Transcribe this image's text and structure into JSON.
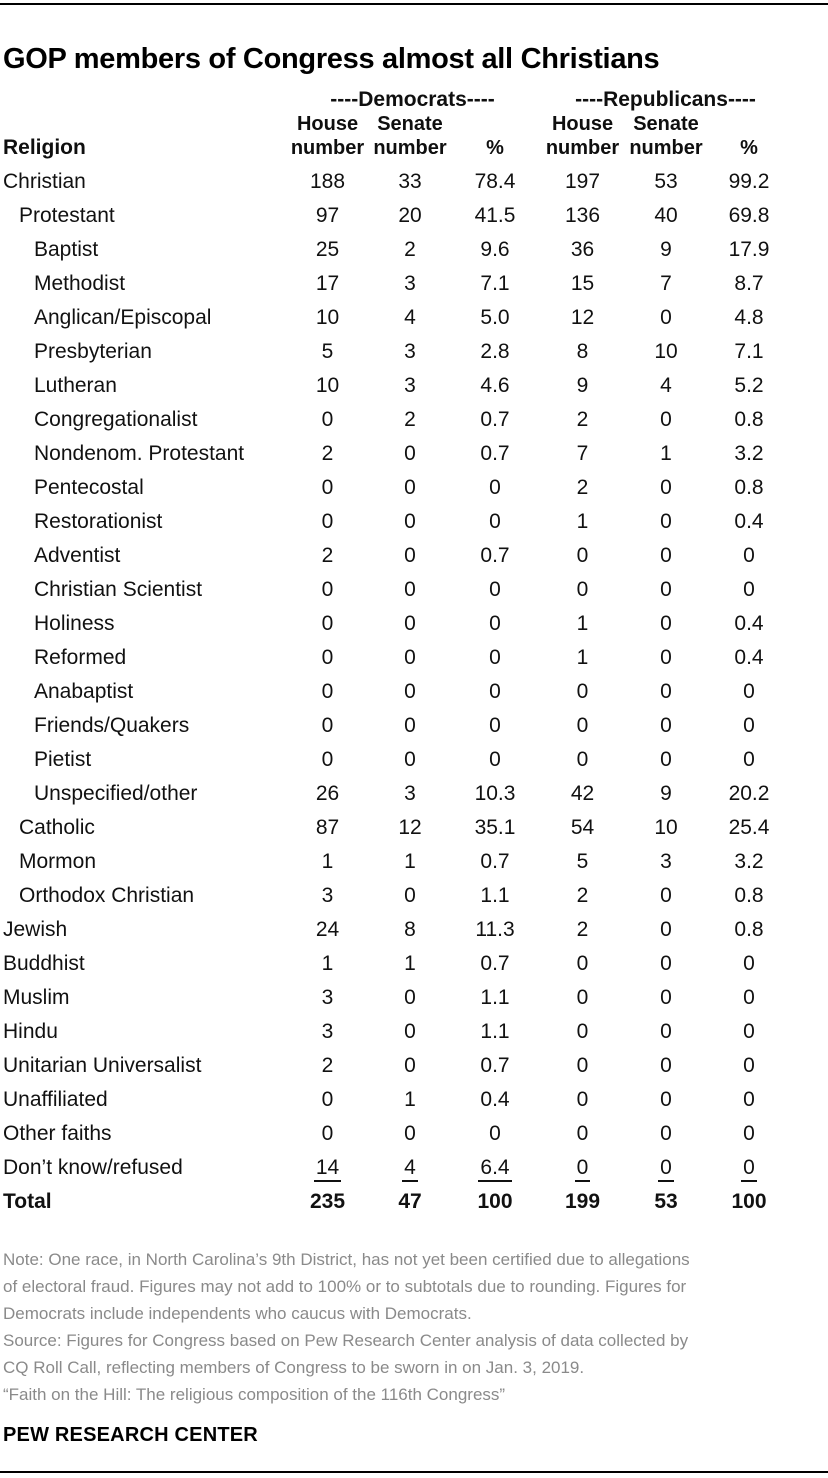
{
  "page": {
    "title": "GOP members of Congress almost all Christians",
    "branding": "PEW RESEARCH CENTER"
  },
  "chart_data": {
    "type": "table",
    "title": "GOP members of Congress almost all Christians",
    "row_header": "Religion",
    "groups": {
      "democrats": "----Democrats----",
      "republicans": "----Republicans----"
    },
    "col_headers": [
      "House\nnumber",
      "Senate\nnumber",
      "%",
      "House\nnumber",
      "Senate\nnumber",
      "%"
    ],
    "columns_meaning": [
      "Democrats House number",
      "Democrats Senate number",
      "Democrats %",
      "Republicans House number",
      "Republicans Senate number",
      "Republicans %"
    ],
    "rows": [
      {
        "label": "Christian",
        "indent": 0,
        "style": "normal",
        "values": [
          "188",
          "33",
          "78.4",
          "197",
          "53",
          "99.2"
        ]
      },
      {
        "label": "Protestant",
        "indent": 1,
        "style": "normal",
        "values": [
          "97",
          "20",
          "41.5",
          "136",
          "40",
          "69.8"
        ]
      },
      {
        "label": "Baptist",
        "indent": 2,
        "style": "normal",
        "values": [
          "25",
          "2",
          "9.6",
          "36",
          "9",
          "17.9"
        ]
      },
      {
        "label": "Methodist",
        "indent": 2,
        "style": "normal",
        "values": [
          "17",
          "3",
          "7.1",
          "15",
          "7",
          "8.7"
        ]
      },
      {
        "label": "Anglican/Episcopal",
        "indent": 2,
        "style": "normal",
        "values": [
          "10",
          "4",
          "5.0",
          "12",
          "0",
          "4.8"
        ]
      },
      {
        "label": "Presbyterian",
        "indent": 2,
        "style": "normal",
        "values": [
          "5",
          "3",
          "2.8",
          "8",
          "10",
          "7.1"
        ]
      },
      {
        "label": "Lutheran",
        "indent": 2,
        "style": "normal",
        "values": [
          "10",
          "3",
          "4.6",
          "9",
          "4",
          "5.2"
        ]
      },
      {
        "label": "Congregationalist",
        "indent": 2,
        "style": "normal",
        "values": [
          "0",
          "2",
          "0.7",
          "2",
          "0",
          "0.8"
        ]
      },
      {
        "label": "Nondenom. Protestant",
        "indent": 2,
        "style": "normal",
        "values": [
          "2",
          "0",
          "0.7",
          "7",
          "1",
          "3.2"
        ]
      },
      {
        "label": "Pentecostal",
        "indent": 2,
        "style": "normal",
        "values": [
          "0",
          "0",
          "0",
          "2",
          "0",
          "0.8"
        ]
      },
      {
        "label": "Restorationist",
        "indent": 2,
        "style": "normal",
        "values": [
          "0",
          "0",
          "0",
          "1",
          "0",
          "0.4"
        ]
      },
      {
        "label": "Adventist",
        "indent": 2,
        "style": "normal",
        "values": [
          "2",
          "0",
          "0.7",
          "0",
          "0",
          "0"
        ]
      },
      {
        "label": "Christian Scientist",
        "indent": 2,
        "style": "normal",
        "values": [
          "0",
          "0",
          "0",
          "0",
          "0",
          "0"
        ]
      },
      {
        "label": "Holiness",
        "indent": 2,
        "style": "normal",
        "values": [
          "0",
          "0",
          "0",
          "1",
          "0",
          "0.4"
        ]
      },
      {
        "label": "Reformed",
        "indent": 2,
        "style": "normal",
        "values": [
          "0",
          "0",
          "0",
          "1",
          "0",
          "0.4"
        ]
      },
      {
        "label": "Anabaptist",
        "indent": 2,
        "style": "normal",
        "values": [
          "0",
          "0",
          "0",
          "0",
          "0",
          "0"
        ]
      },
      {
        "label": "Friends/Quakers",
        "indent": 2,
        "style": "normal",
        "values": [
          "0",
          "0",
          "0",
          "0",
          "0",
          "0"
        ]
      },
      {
        "label": "Pietist",
        "indent": 2,
        "style": "normal",
        "values": [
          "0",
          "0",
          "0",
          "0",
          "0",
          "0"
        ]
      },
      {
        "label": "Unspecified/other",
        "indent": 2,
        "style": "normal",
        "values": [
          "26",
          "3",
          "10.3",
          "42",
          "9",
          "20.2"
        ]
      },
      {
        "label": "Catholic",
        "indent": 1,
        "style": "normal",
        "values": [
          "87",
          "12",
          "35.1",
          "54",
          "10",
          "25.4"
        ]
      },
      {
        "label": "Mormon",
        "indent": 1,
        "style": "normal",
        "values": [
          "1",
          "1",
          "0.7",
          "5",
          "3",
          "3.2"
        ]
      },
      {
        "label": "Orthodox Christian",
        "indent": 1,
        "style": "normal",
        "values": [
          "3",
          "0",
          "1.1",
          "2",
          "0",
          "0.8"
        ]
      },
      {
        "label": "Jewish",
        "indent": 0,
        "style": "normal",
        "values": [
          "24",
          "8",
          "11.3",
          "2",
          "0",
          "0.8"
        ]
      },
      {
        "label": "Buddhist",
        "indent": 0,
        "style": "normal",
        "values": [
          "1",
          "1",
          "0.7",
          "0",
          "0",
          "0"
        ]
      },
      {
        "label": "Muslim",
        "indent": 0,
        "style": "normal",
        "values": [
          "3",
          "0",
          "1.1",
          "0",
          "0",
          "0"
        ]
      },
      {
        "label": "Hindu",
        "indent": 0,
        "style": "normal",
        "values": [
          "3",
          "0",
          "1.1",
          "0",
          "0",
          "0"
        ]
      },
      {
        "label": "Unitarian Universalist",
        "indent": 0,
        "style": "normal",
        "values": [
          "2",
          "0",
          "0.7",
          "0",
          "0",
          "0"
        ]
      },
      {
        "label": "Unaffiliated",
        "indent": 0,
        "style": "normal",
        "values": [
          "0",
          "1",
          "0.4",
          "0",
          "0",
          "0"
        ]
      },
      {
        "label": "Other faiths",
        "indent": 0,
        "style": "normal",
        "values": [
          "0",
          "0",
          "0",
          "0",
          "0",
          "0"
        ]
      },
      {
        "label": "Don’t know/refused",
        "indent": 0,
        "style": "underline",
        "values": [
          "14",
          "4",
          "6.4",
          "0",
          "0",
          "0"
        ]
      },
      {
        "label": "Total",
        "indent": 0,
        "style": "bold",
        "values": [
          "235",
          "47",
          "100",
          "199",
          "53",
          "100"
        ]
      }
    ]
  },
  "footnotes": {
    "note_lines": [
      "Note: One race, in North Carolina’s 9th District, has not yet been certified due to allegations",
      "of electoral fraud. Figures may not add to 100% or to subtotals due to rounding. Figures for",
      "Democrats include independents who caucus with Democrats."
    ],
    "source_lines": [
      "Source: Figures for Congress based on Pew Research Center analysis of data collected by",
      "CQ Roll Call, reflecting members of Congress to be sworn in on Jan. 3, 2019."
    ],
    "quote_line": "“Faith on the Hill: The religious composition of the 116th Congress”"
  },
  "colors": {
    "background": "#ffffff",
    "title_text": "#000000",
    "table_text": "#111111",
    "note_text": "#8a8a8a",
    "rule": "#000000"
  }
}
